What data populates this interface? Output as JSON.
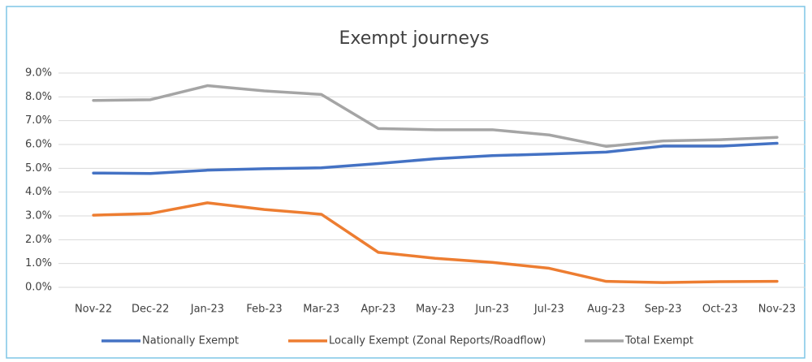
{
  "chart_data": {
    "type": "line",
    "title": "Exempt journeys",
    "categories": [
      "Nov-22",
      "Dec-22",
      "Jan-23",
      "Feb-23",
      "Mar-23",
      "Apr-23",
      "May-23",
      "Jun-23",
      "Jul-23",
      "Aug-23",
      "Sep-23",
      "Oct-23",
      "Nov-23"
    ],
    "series": [
      {
        "name": "Nationally Exempt",
        "color": "#4472c4",
        "values": [
          4.8,
          4.78,
          4.92,
          4.98,
          5.02,
          5.2,
          5.4,
          5.53,
          5.6,
          5.68,
          5.93,
          5.93,
          6.05
        ]
      },
      {
        "name": "Locally Exempt (Zonal Reports/Roadflow)",
        "color": "#ed7d31",
        "values": [
          3.03,
          3.1,
          3.55,
          3.27,
          3.07,
          1.47,
          1.22,
          1.05,
          0.8,
          0.25,
          0.2,
          0.24,
          0.25
        ]
      },
      {
        "name": "Total Exempt",
        "color": "#a5a5a5",
        "values": [
          7.85,
          7.88,
          8.47,
          8.25,
          8.1,
          6.67,
          6.62,
          6.62,
          6.4,
          5.92,
          6.15,
          6.2,
          6.3
        ]
      }
    ],
    "ylim": [
      0,
      9
    ],
    "yticks": [
      {
        "value": 0,
        "label": "0.0%"
      },
      {
        "value": 1,
        "label": "1.0%"
      },
      {
        "value": 2,
        "label": "2.0%"
      },
      {
        "value": 3,
        "label": "3.0%"
      },
      {
        "value": 4,
        "label": "4.0%"
      },
      {
        "value": 5,
        "label": "5.0%"
      },
      {
        "value": 6,
        "label": "6.0%"
      },
      {
        "value": 7,
        "label": "7.0%"
      },
      {
        "value": 8,
        "label": "8.0%"
      },
      {
        "value": 9,
        "label": "9.0%"
      }
    ],
    "grid": true,
    "legend": "bottom"
  }
}
